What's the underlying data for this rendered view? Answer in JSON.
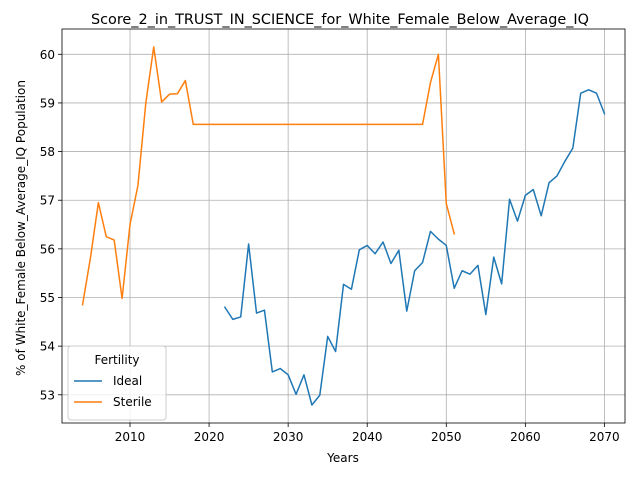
{
  "chart_data": {
    "type": "line",
    "title": "Score_2_in_TRUST_IN_SCIENCE_for_White_Female_Below_Average_IQ",
    "xlabel": "Years",
    "ylabel": "% of White_Female Below_Average_IQ Population",
    "xlim": [
      2001.4,
      2072.6
    ],
    "ylim": [
      52.42,
      60.52
    ],
    "xticks": [
      2010,
      2020,
      2030,
      2040,
      2050,
      2060,
      2070
    ],
    "yticks": [
      53,
      54,
      55,
      56,
      57,
      58,
      59,
      60
    ],
    "grid": true,
    "legend": {
      "title": "Fertility",
      "placement": "lower-left"
    },
    "series": [
      {
        "name": "Ideal",
        "color": "#1f77b4",
        "x": [
          2022,
          2023,
          2024,
          2025,
          2026,
          2027,
          2028,
          2029,
          2030,
          2031,
          2032,
          2033,
          2034,
          2035,
          2036,
          2037,
          2038,
          2039,
          2040,
          2041,
          2042,
          2043,
          2044,
          2045,
          2046,
          2047,
          2048,
          2049,
          2050,
          2051,
          2052,
          2053,
          2054,
          2055,
          2056,
          2057,
          2058,
          2059,
          2060,
          2061,
          2062,
          2063,
          2064,
          2065,
          2066,
          2067,
          2068,
          2069,
          2070
        ],
        "values": [
          54.8,
          54.55,
          54.6,
          56.1,
          54.68,
          54.74,
          53.47,
          53.54,
          53.41,
          53.01,
          53.41,
          52.79,
          52.99,
          54.2,
          53.89,
          55.27,
          55.17,
          55.98,
          56.07,
          55.9,
          56.14,
          55.7,
          55.97,
          54.72,
          55.55,
          55.72,
          56.36,
          56.2,
          56.07,
          55.19,
          55.55,
          55.48,
          55.66,
          54.65,
          55.83,
          55.28,
          57.02,
          56.57,
          57.1,
          57.22,
          56.68,
          57.36,
          57.5,
          57.8,
          58.07,
          59.2,
          59.27,
          59.2,
          58.78
        ]
      },
      {
        "name": "Sterile",
        "color": "#ff7f0e",
        "x": [
          2004,
          2005,
          2006,
          2007,
          2008,
          2009,
          2010,
          2011,
          2012,
          2013,
          2014,
          2015,
          2016,
          2017,
          2018,
          2019,
          2020,
          2021,
          2022,
          2023,
          2024,
          2025,
          2026,
          2027,
          2028,
          2029,
          2030,
          2031,
          2032,
          2033,
          2034,
          2035,
          2036,
          2037,
          2038,
          2039,
          2040,
          2041,
          2042,
          2043,
          2044,
          2045,
          2046,
          2047,
          2048,
          2049,
          2050,
          2051
        ],
        "values": [
          54.85,
          55.82,
          56.95,
          56.25,
          56.18,
          54.98,
          56.5,
          57.3,
          59.0,
          60.15,
          59.02,
          59.18,
          59.19,
          59.46,
          58.56,
          58.56,
          58.56,
          58.56,
          58.56,
          58.56,
          58.56,
          58.56,
          58.56,
          58.56,
          58.56,
          58.56,
          58.56,
          58.56,
          58.56,
          58.56,
          58.56,
          58.56,
          58.56,
          58.56,
          58.56,
          58.56,
          58.56,
          58.56,
          58.56,
          58.56,
          58.56,
          58.56,
          58.56,
          58.56,
          59.42,
          60.0,
          56.93,
          56.31
        ]
      }
    ]
  }
}
